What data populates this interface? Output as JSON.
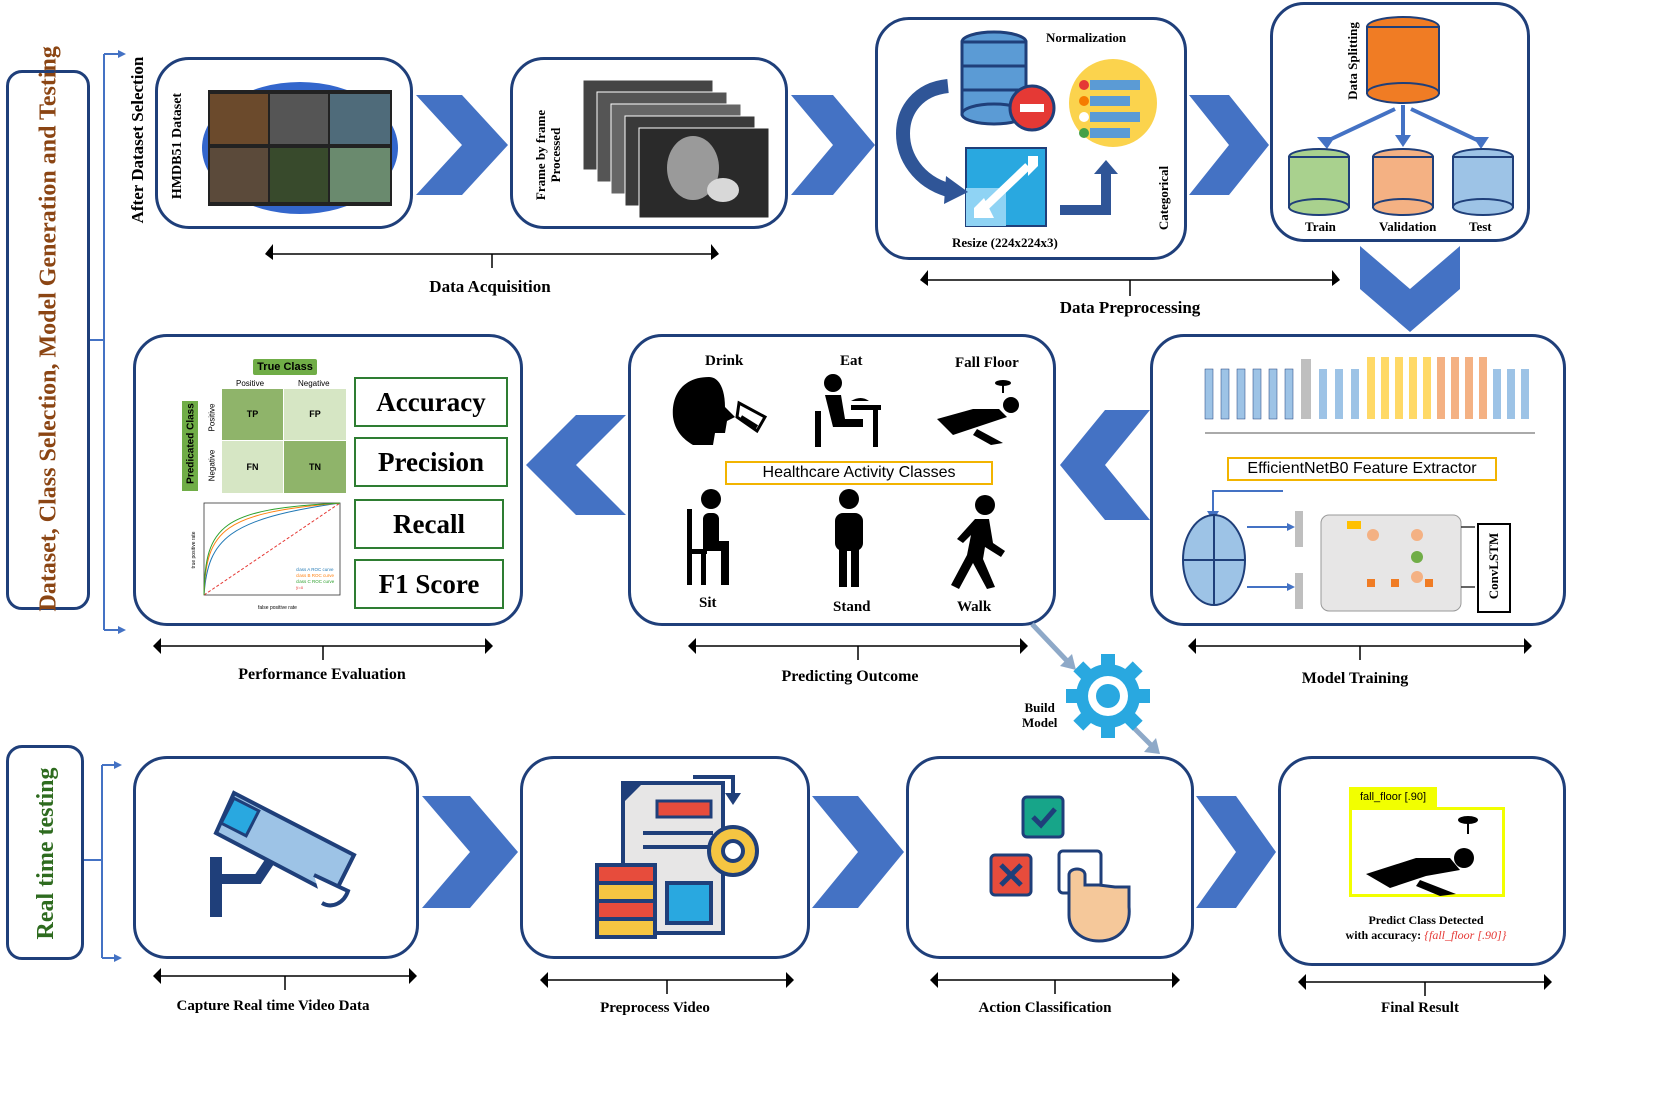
{
  "side_labels": {
    "top": "Dataset, Class Selection, Model Generation and Testing",
    "bottom": "Real time testing",
    "after_selection": "After Dataset Selection"
  },
  "acquisition": {
    "dataset_label": "HMDB51 Dataset",
    "frame_label_1": "Frame by frame",
    "frame_label_2": "Processed",
    "section": "Data Acquisition"
  },
  "preprocessing": {
    "normalization": "Normalization",
    "resize": "Resize (224x224x3)",
    "categorical": "Categorical",
    "data_splitting": "Data Splitting",
    "train": "Train",
    "validation": "Validation",
    "test": "Test",
    "section": "Data Preprocessing"
  },
  "training": {
    "extractor": "EfficientNetB0  Feature Extractor",
    "convlstm": "ConvLSTM",
    "section": "Model Training"
  },
  "outcome": {
    "classes_title": "Healthcare  Activity Classes",
    "drink": "Drink",
    "eat": "Eat",
    "fall": "Fall Floor",
    "sit": "Sit",
    "stand": "Stand",
    "walk": "Walk",
    "section": "Predicting Outcome"
  },
  "evaluation": {
    "true_class": "True Class",
    "predicated_class": "Predicated Class",
    "positive": "Positive",
    "negative": "Negative",
    "tp": "TP",
    "fp": "FP",
    "fn": "FN",
    "tn": "TN",
    "metrics": [
      "Accuracy",
      "Precision",
      "Recall",
      "F1 Score"
    ],
    "section": "Performance Evaluation",
    "roc_legend": [
      "class A ROC curve",
      "class B ROC curve",
      "class C ROC curve",
      "y=x"
    ],
    "roc_xlabel": "false positive rate",
    "roc_ylabel": "true positive rate"
  },
  "build_model": {
    "line1": "Build",
    "line2": "Model"
  },
  "realtime": {
    "capture": "Capture  Real time Video Data",
    "preprocess": "Preprocess Video",
    "classification": "Action Classification",
    "final": "Final Result",
    "detect_tag": "fall_floor  [.90]",
    "predict_line1": "Predict Class Detected",
    "predict_line2": "with accuracy: ",
    "predict_value": "{fall_floor [.90]}"
  },
  "colors": {
    "box_border": "#1f3f7a",
    "arrow": "#4472c4",
    "side_text_top": "#8b4513",
    "side_text_bottom": "#2e6b1f",
    "highlight": "#f2b400"
  }
}
